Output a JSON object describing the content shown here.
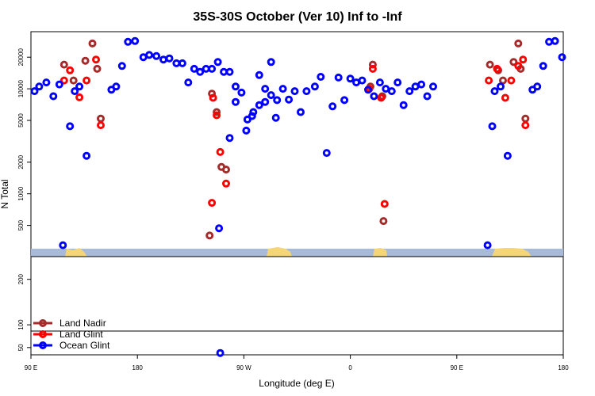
{
  "chart_data": {
    "type": "scatter",
    "title": "35S-30S October (Ver 10)   Inf to -Inf",
    "xlabel": "Longitude (deg E)",
    "ylabel": "N Total",
    "x_ticks": [
      "90 E",
      "180",
      "90 W",
      "0",
      "90 E",
      "180"
    ],
    "x_tick_values": [
      90,
      180,
      270,
      360,
      450,
      540
    ],
    "xlim": [
      90,
      540
    ],
    "upper_panel": {
      "scale": "log",
      "ylim": [
        300,
        35000
      ],
      "y_ticks": [
        "500",
        "1000",
        "2000",
        "5000",
        "10000",
        "20000"
      ],
      "y_tick_values": [
        500,
        1000,
        2000,
        5000,
        10000,
        20000
      ]
    },
    "lower_panel": {
      "ylim": [
        34,
        250
      ],
      "y_ticks": [
        "50",
        "100",
        "200"
      ],
      "y_tick_values": [
        50,
        100,
        200
      ]
    },
    "legend_position": "bottom-left",
    "series": [
      {
        "name": "Land Nadir",
        "color": "#a52a2a",
        "points": [
          [
            118,
            17000
          ],
          [
            126,
            12000
          ],
          [
            136,
            18500
          ],
          [
            142,
            27000
          ],
          [
            146,
            15500
          ],
          [
            149,
            5200
          ],
          [
            241,
            400
          ],
          [
            243,
            9000
          ],
          [
            247,
            6000
          ],
          [
            251,
            1800
          ],
          [
            255,
            1700
          ],
          [
            377,
            10500
          ],
          [
            379,
            17000
          ],
          [
            387,
            8500
          ],
          [
            388,
            550
          ],
          [
            478,
            17000
          ],
          [
            485,
            15000
          ],
          [
            489,
            12000
          ],
          [
            498,
            18000
          ],
          [
            502,
            27000
          ],
          [
            504,
            15500
          ],
          [
            508,
            5200
          ]
        ]
      },
      {
        "name": "Land Glint",
        "color": "#ff0000",
        "points": [
          [
            118,
            12000
          ],
          [
            123,
            15000
          ],
          [
            131,
            8300
          ],
          [
            137,
            12000
          ],
          [
            145,
            19000
          ],
          [
            149,
            4500
          ],
          [
            243,
            820
          ],
          [
            244,
            8200
          ],
          [
            247,
            5600
          ],
          [
            250,
            2500
          ],
          [
            255,
            1250
          ],
          [
            376,
            10000
          ],
          [
            379,
            15500
          ],
          [
            386,
            8200
          ],
          [
            389,
            800
          ],
          [
            477,
            12000
          ],
          [
            484,
            15500
          ],
          [
            491,
            8200
          ],
          [
            496,
            12000
          ],
          [
            502,
            16500
          ],
          [
            506,
            19000
          ],
          [
            508,
            4500
          ]
        ]
      },
      {
        "name": "Ocean Glint",
        "color": "#0000ff",
        "points": [
          [
            93,
            9500
          ],
          [
            97,
            10500
          ],
          [
            103,
            11500
          ],
          [
            109,
            8500
          ],
          [
            114,
            11000
          ],
          [
            117,
            275
          ],
          [
            123,
            4400
          ],
          [
            127,
            9500
          ],
          [
            131,
            10500
          ],
          [
            137,
            2300
          ],
          [
            158,
            9800
          ],
          [
            162,
            10500
          ],
          [
            167,
            16500
          ],
          [
            172,
            28000
          ],
          [
            178,
            28500
          ],
          [
            185,
            20000
          ],
          [
            190,
            21000
          ],
          [
            196,
            20500
          ],
          [
            202,
            19000
          ],
          [
            207,
            19500
          ],
          [
            213,
            17500
          ],
          [
            218,
            17500
          ],
          [
            223,
            11500
          ],
          [
            228,
            15500
          ],
          [
            233,
            14500
          ],
          [
            238,
            15500
          ],
          [
            243,
            15500
          ],
          [
            248,
            18000
          ],
          [
            253,
            14500
          ],
          [
            258,
            14500
          ],
          [
            263,
            10500
          ],
          [
            268,
            9200
          ],
          [
            273,
            5100
          ],
          [
            278,
            6000
          ],
          [
            283,
            7000
          ],
          [
            288,
            7500
          ],
          [
            293,
            8700
          ],
          [
            297,
            5300
          ],
          [
            249,
            470
          ],
          [
            258,
            3400
          ],
          [
            263,
            7500
          ],
          [
            272,
            4000
          ],
          [
            277,
            5500
          ],
          [
            283,
            13500
          ],
          [
            288,
            10000
          ],
          [
            293,
            18000
          ],
          [
            298,
            7800
          ],
          [
            303,
            10000
          ],
          [
            308,
            7900
          ],
          [
            313,
            9500
          ],
          [
            318,
            6000
          ],
          [
            323,
            9500
          ],
          [
            330,
            10500
          ],
          [
            335,
            13000
          ],
          [
            340,
            2450
          ],
          [
            345,
            6800
          ],
          [
            350,
            12800
          ],
          [
            355,
            7800
          ],
          [
            360,
            12500
          ],
          [
            365,
            11500
          ],
          [
            370,
            12000
          ],
          [
            375,
            9800
          ],
          [
            380,
            8500
          ],
          [
            385,
            11500
          ],
          [
            390,
            10000
          ],
          [
            395,
            9500
          ],
          [
            400,
            11500
          ],
          [
            405,
            7000
          ],
          [
            410,
            9500
          ],
          [
            415,
            10500
          ],
          [
            420,
            11000
          ],
          [
            425,
            8500
          ],
          [
            430,
            10500
          ],
          [
            476,
            275
          ],
          [
            480,
            4400
          ],
          [
            482,
            9500
          ],
          [
            487,
            10500
          ],
          [
            493,
            2300
          ],
          [
            514,
            9800
          ],
          [
            518,
            10500
          ],
          [
            523,
            16500
          ],
          [
            528,
            28000
          ],
          [
            533,
            28500
          ],
          [
            539,
            20000
          ],
          [
            250,
            38
          ]
        ]
      }
    ]
  }
}
